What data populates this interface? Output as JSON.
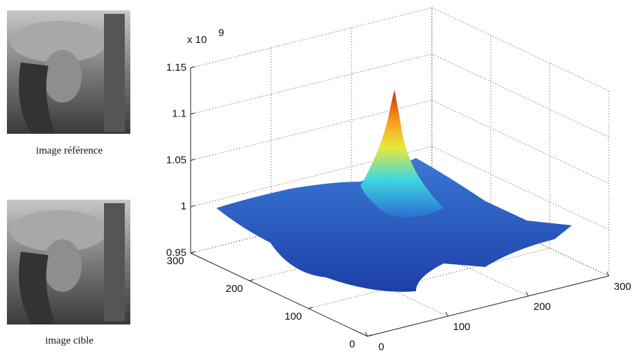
{
  "images": [
    {
      "caption": "image référence"
    },
    {
      "caption": "image cible"
    }
  ],
  "chart_data": {
    "type": "surface",
    "z_exponent": {
      "base": "x 10",
      "power": "9"
    },
    "xlim": [
      0,
      300
    ],
    "xticks": [
      0,
      100,
      200,
      300
    ],
    "ylim": [
      0,
      300
    ],
    "yticks": [
      0,
      100,
      200,
      300
    ],
    "zlim": [
      0.95,
      1.15
    ],
    "zticks": [
      0.95,
      1,
      1.05,
      1.1,
      1.15
    ],
    "grid": true
  }
}
